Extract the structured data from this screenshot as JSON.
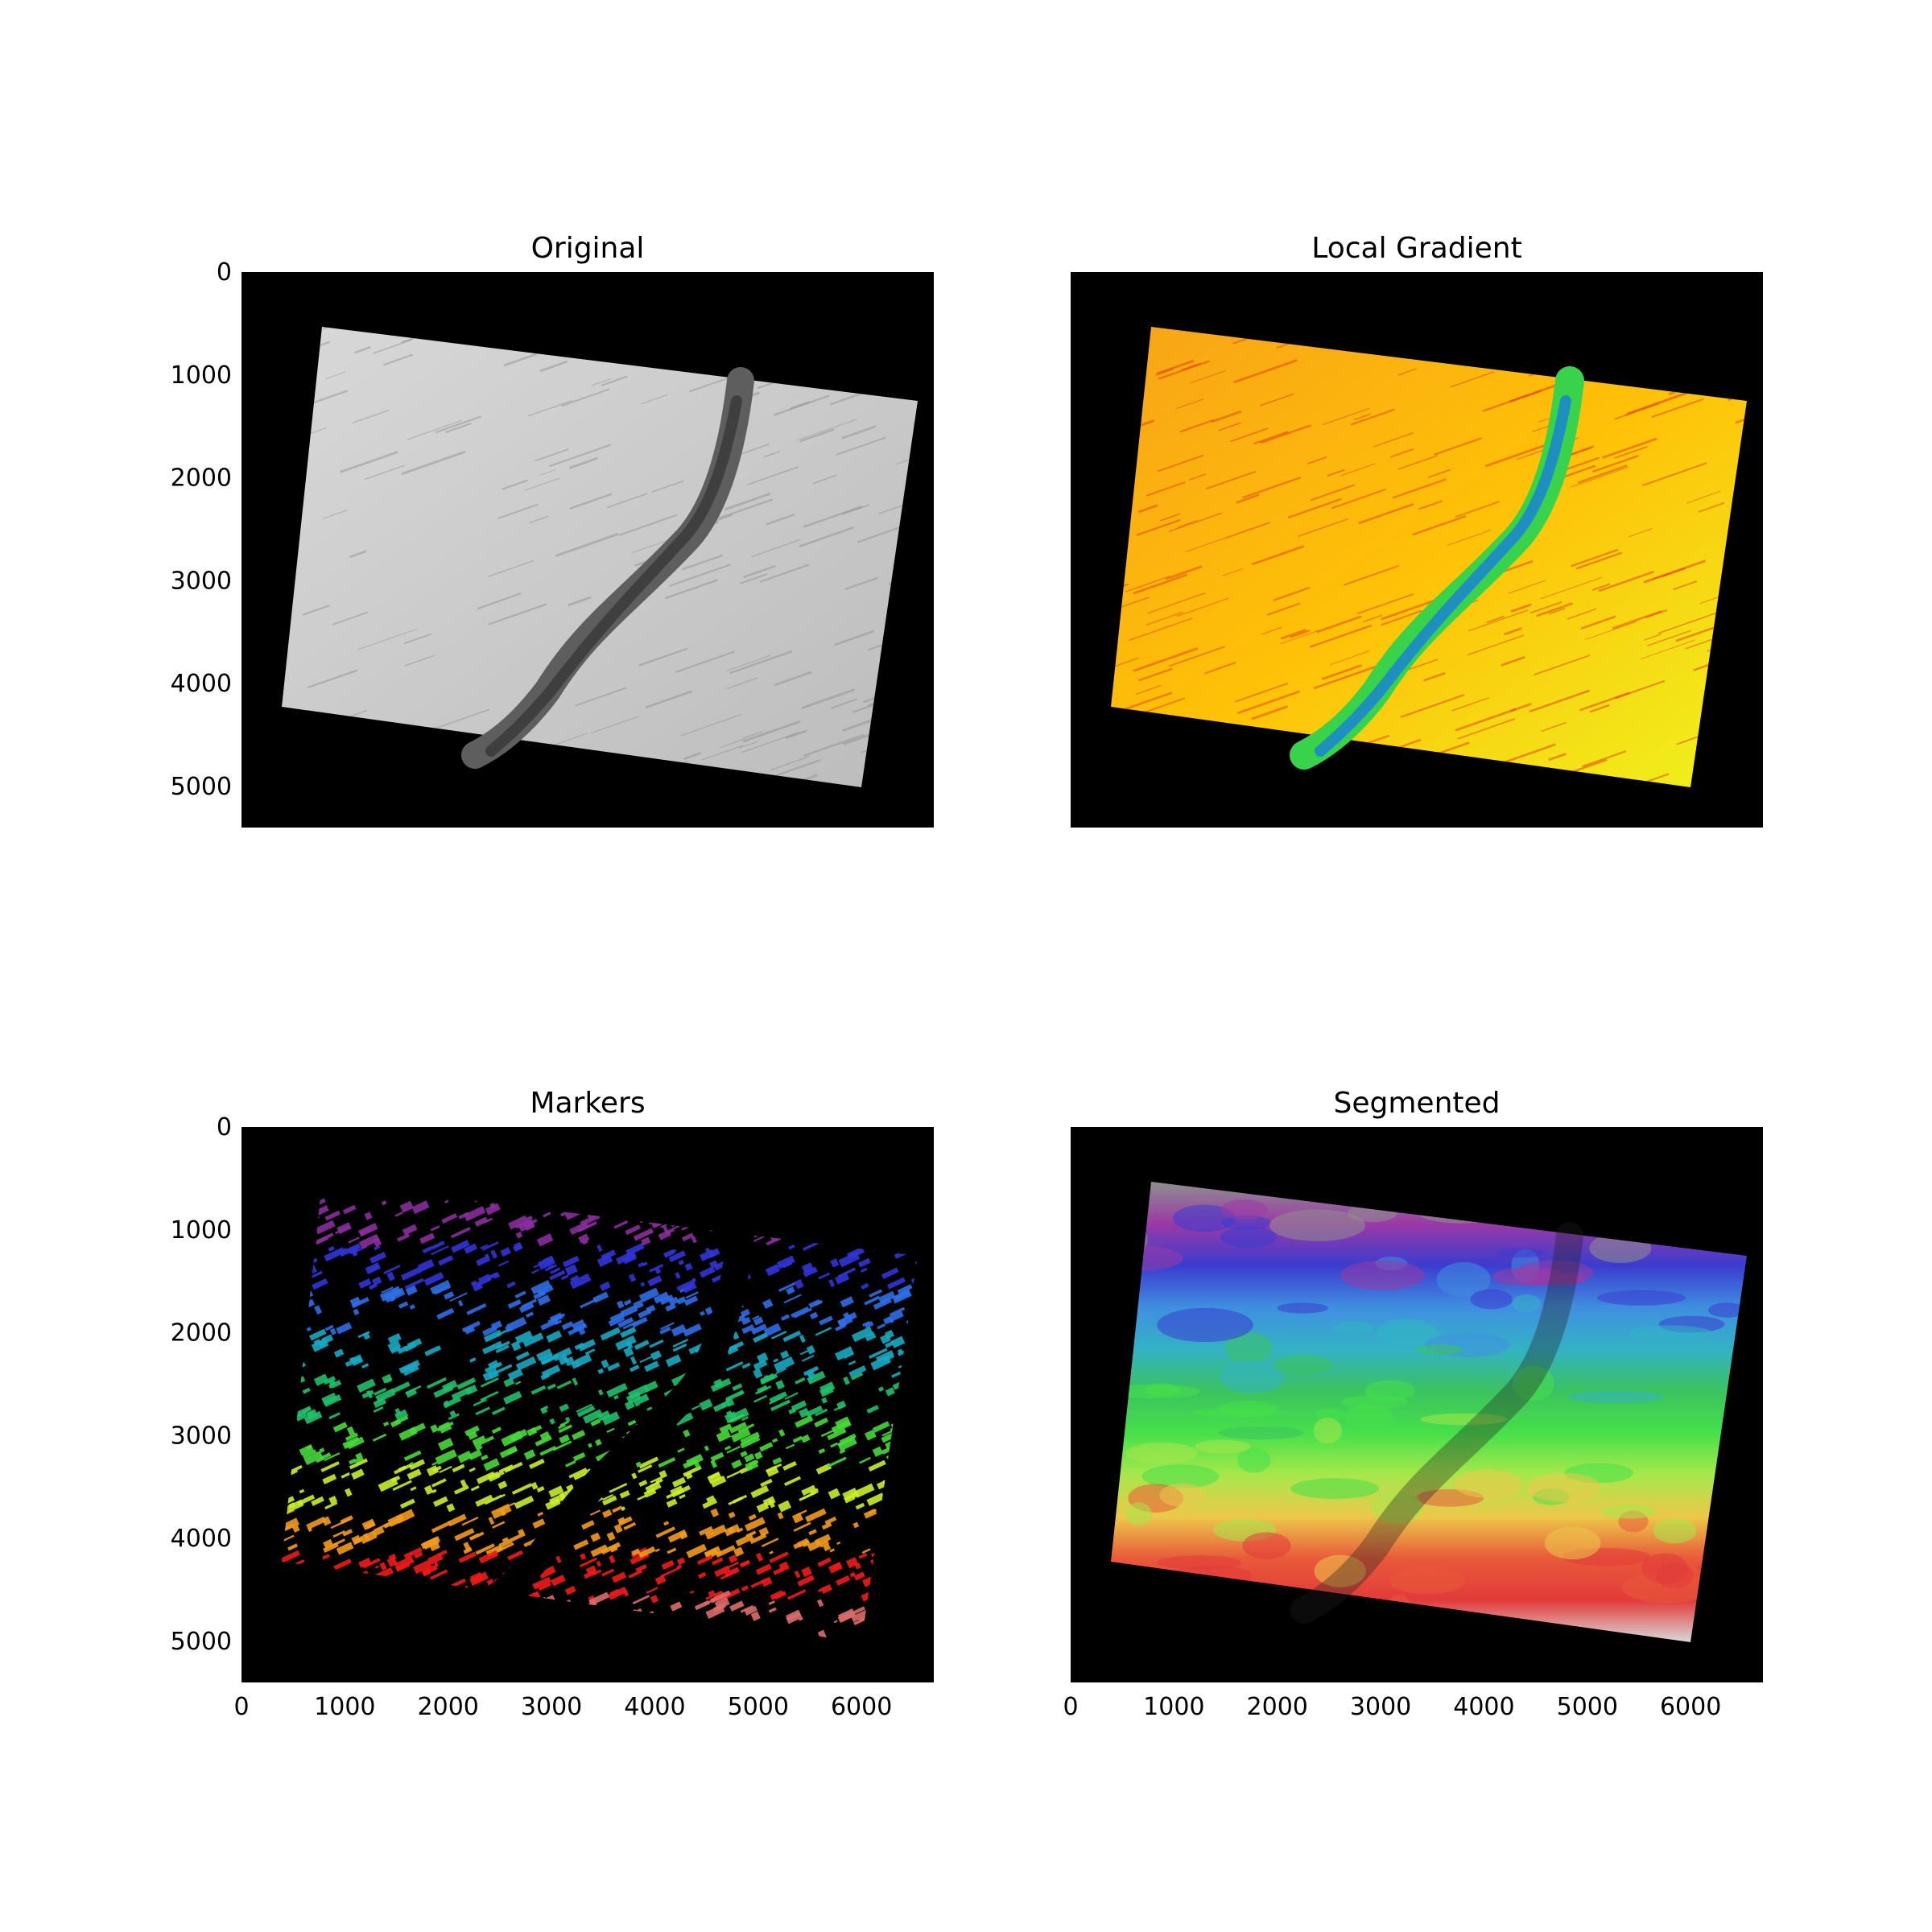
{
  "panels": [
    {
      "title": "Original",
      "colors": {
        "background": "#000000",
        "surface_light": "#d8d8d8",
        "surface_dark": "#bcbcbc",
        "channel": "#5e5e5e",
        "channel_core": "#3f3f3f",
        "texture": "#8c8c8c"
      },
      "yticks": [
        "0",
        "1000",
        "2000",
        "3000",
        "4000",
        "5000"
      ],
      "xticks": []
    },
    {
      "title": "Local Gradient",
      "colors": {
        "background": "#000000",
        "surface_top": "#f7a417",
        "surface_mid": "#ffc107",
        "surface_edge": "#eef21f",
        "channel": "#39d34b",
        "channel_core": "#1f8fbf",
        "texture": "#e04a10"
      },
      "yticks": [],
      "xticks": []
    },
    {
      "title": "Markers",
      "colors": {
        "background": "#000000",
        "bands": [
          "#8a2e9c",
          "#3134d6",
          "#2f6ee6",
          "#18a8c2",
          "#21c06a",
          "#47d93a",
          "#c9ee2b",
          "#f39a1c",
          "#ef1a1a",
          "#d96c6c"
        ]
      },
      "yticks": [
        "0",
        "1000",
        "2000",
        "3000",
        "4000",
        "5000"
      ],
      "xticks": [
        "0",
        "1000",
        "2000",
        "3000",
        "4000",
        "5000",
        "6000"
      ]
    },
    {
      "title": "Segmented",
      "colors": {
        "background": "#000000",
        "bands": [
          "#8f8f8f",
          "#9b3aa6",
          "#3a3ccf",
          "#3f8fe0",
          "#33b2c4",
          "#3cc25e",
          "#46e04a",
          "#a6e84a",
          "#ecc84a",
          "#e95a3a",
          "#e23a3a",
          "#d9d9d9"
        ],
        "channel_overlay": "#202020"
      },
      "yticks": [],
      "xticks": [
        "0",
        "1000",
        "2000",
        "3000",
        "4000",
        "5000",
        "6000"
      ]
    }
  ]
}
